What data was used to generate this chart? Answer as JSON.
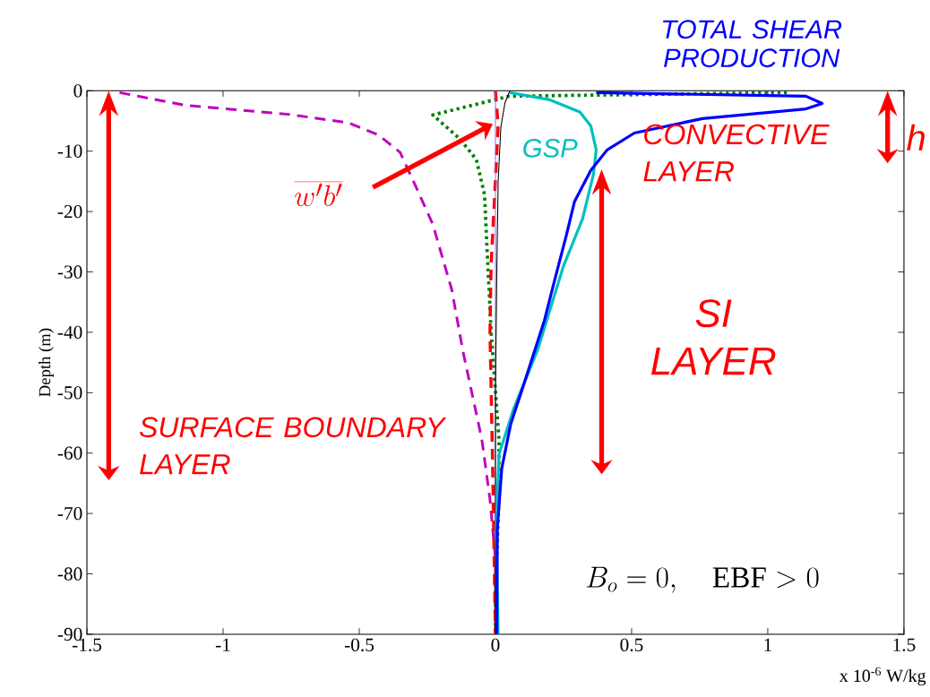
{
  "chart_data": {
    "type": "line",
    "xlabel": "x 10$^{-6}$ W/kg",
    "ylabel": "Depth (m)",
    "xlim": [
      -1.5,
      1.5
    ],
    "ylim": [
      -90,
      0
    ],
    "xticks": [
      -1.5,
      -1,
      -0.5,
      0,
      0.5,
      1,
      1.5
    ],
    "yticks": [
      -90,
      -80,
      -70,
      -60,
      -50,
      -40,
      -30,
      -20,
      -10,
      0
    ],
    "grid": false,
    "annotations": [
      "SURFACE BOUNDARY LAYER",
      "CONVECTIVE LAYER",
      "SI LAYER",
      "h",
      "B_o = 0, \\quad \\mathrm{EBF} > 0",
      "\\overline{w'b'}"
    ],
    "series": [
      {
        "color": "#bf00bf",
        "line_style": "dashed",
        "x": [
          -1.38,
          -1.14,
          -0.76,
          -0.54,
          -0.43,
          -0.35,
          -0.3,
          -0.23,
          -0.16,
          -0.12,
          -0.05,
          -0.02,
          0,
          0
        ],
        "values": [
          -0.3,
          -2.4,
          -3.9,
          -5.3,
          -7.3,
          -10.2,
          -15.1,
          -22.1,
          -33,
          -43,
          -57.7,
          -67.7,
          -77.5,
          -90
        ]
      },
      {
        "color": "#007f00",
        "line_style": "dotted",
        "x": [
          1.07,
          0.05,
          -0.23,
          -0.13,
          -0.07,
          -0.04,
          -0.03,
          -0.015,
          0.013,
          0.013,
          0,
          0
        ],
        "values": [
          -0.3,
          -0.9,
          -4,
          -8,
          -11.4,
          -17.2,
          -27,
          -40.4,
          -57.7,
          -67.7,
          -82.5,
          -90
        ]
      },
      {
        "color": "#ff0000",
        "line_style": "dashed",
        "x": [
          0,
          0.01,
          -0.016,
          -0.02,
          -0.01,
          0
        ],
        "values": [
          0,
          -5.8,
          -29,
          -40,
          -62.6,
          -90
        ]
      },
      {
        "color": "#6a6aff",
        "line_style": "solid",
        "x": [
          0,
          0
        ],
        "values": [
          0,
          -90
        ]
      },
      {
        "color": "#000000",
        "line_style": "solid",
        "x": [
          0.053,
          0.035,
          0.02,
          0.01,
          0.005,
          0,
          0
        ],
        "values": [
          0,
          -2,
          -6,
          -15,
          -30,
          -50,
          -90
        ]
      },
      {
        "name": "GSP",
        "color": "#00bfbf",
        "line_style": "solid",
        "x": [
          0.053,
          0.2,
          0.31,
          0.35,
          0.37,
          0.36,
          0.32,
          0.25,
          0.155,
          0.066,
          0.013,
          0.003,
          0.01
        ],
        "values": [
          -0.3,
          -1.5,
          -3.5,
          -5.8,
          -9.8,
          -13.8,
          -21.2,
          -29,
          -42.9,
          -52.8,
          -60.2,
          -72.5,
          -90
        ]
      },
      {
        "name": "TOTAL SHEAR PRODUCTION",
        "color": "#0000ff",
        "line_style": "solid",
        "x": [
          0.37,
          1.14,
          1.2,
          1.14,
          0.76,
          0.51,
          0.41,
          0.35,
          0.29,
          0.26,
          0.22,
          0.18,
          0.11,
          0.056,
          0.023,
          0.007,
          0.005
        ],
        "values": [
          -0.3,
          -0.9,
          -2.1,
          -3,
          -4.6,
          -7,
          -9.8,
          -13.2,
          -18.4,
          -24,
          -30.9,
          -38,
          -47.8,
          -55.2,
          -62.6,
          -72.5,
          -90
        ]
      }
    ]
  }
}
